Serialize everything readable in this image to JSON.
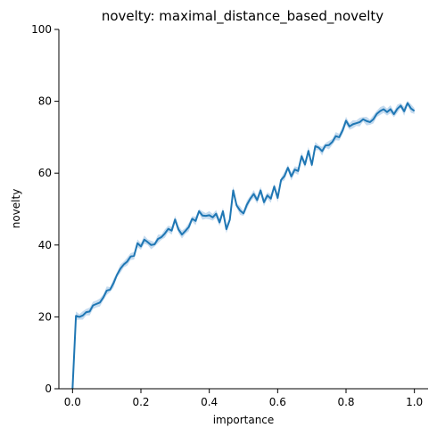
{
  "chart_data": {
    "type": "line",
    "title": "novelty: maximal_distance_based_novelty",
    "xlabel": "importance",
    "ylabel": "novelty",
    "xlim": [
      -0.04,
      1.04
    ],
    "ylim": [
      0,
      100
    ],
    "xticks": [
      0.0,
      0.2,
      0.4,
      0.6,
      0.8,
      1.0
    ],
    "xtick_labels": [
      "0.0",
      "0.2",
      "0.4",
      "0.6",
      "0.8",
      "1.0"
    ],
    "yticks": [
      0,
      20,
      40,
      60,
      80,
      100
    ],
    "ytick_labels": [
      "0",
      "20",
      "40",
      "60",
      "80",
      "100"
    ],
    "grid": false,
    "line_color": "#1f77b4",
    "band_color": "#a6c8e6",
    "series": [
      {
        "x": [
          0.0,
          0.01,
          0.02,
          0.03,
          0.04,
          0.05,
          0.06,
          0.07,
          0.08,
          0.09,
          0.1,
          0.11,
          0.12,
          0.13,
          0.14,
          0.15,
          0.16,
          0.17,
          0.18,
          0.19,
          0.2,
          0.21,
          0.22,
          0.23,
          0.24,
          0.25,
          0.26,
          0.27,
          0.28,
          0.29,
          0.3,
          0.31,
          0.32,
          0.33,
          0.34,
          0.35,
          0.36,
          0.37,
          0.38,
          0.39,
          0.4,
          0.41,
          0.42,
          0.43,
          0.44,
          0.45,
          0.46,
          0.47,
          0.48,
          0.49,
          0.5,
          0.51,
          0.52,
          0.53,
          0.54,
          0.55,
          0.56,
          0.57,
          0.58,
          0.59,
          0.6,
          0.61,
          0.62,
          0.63,
          0.64,
          0.65,
          0.66,
          0.67,
          0.68,
          0.69,
          0.7,
          0.71,
          0.72,
          0.73,
          0.74,
          0.75,
          0.76,
          0.77,
          0.78,
          0.79,
          0.8,
          0.81,
          0.82,
          0.83,
          0.84,
          0.85,
          0.86,
          0.87,
          0.88,
          0.89,
          0.9,
          0.91,
          0.92,
          0.93,
          0.94,
          0.95,
          0.96,
          0.97,
          0.98,
          0.99,
          1.0
        ],
        "y": [
          0.0,
          20.3,
          20.0,
          20.4,
          21.3,
          21.5,
          23.2,
          23.6,
          24.0,
          25.4,
          27.3,
          27.6,
          29.4,
          31.7,
          33.4,
          34.6,
          35.4,
          36.8,
          37.0,
          40.5,
          39.6,
          41.5,
          40.8,
          40.0,
          40.2,
          41.7,
          42.2,
          43.2,
          44.5,
          44.0,
          47.1,
          44.3,
          42.9,
          43.9,
          45.0,
          47.3,
          46.7,
          49.4,
          48.2,
          48.1,
          48.3,
          47.7,
          48.7,
          46.3,
          49.4,
          44.4,
          47.0,
          55.2,
          51.0,
          49.6,
          48.8,
          51.2,
          52.9,
          54.2,
          52.5,
          55.2,
          51.9,
          53.8,
          52.9,
          56.3,
          53.1,
          58.1,
          59.2,
          61.5,
          59.1,
          61.0,
          60.6,
          64.7,
          62.4,
          66.2,
          62.3,
          67.5,
          67.1,
          66.1,
          67.7,
          67.8,
          68.7,
          70.3,
          70.0,
          71.9,
          74.6,
          73.0,
          73.6,
          73.9,
          74.2,
          75.0,
          74.5,
          74.2,
          75.0,
          76.5,
          77.3,
          77.8,
          77.0,
          77.8,
          76.4,
          77.9,
          78.8,
          77.2,
          79.5,
          78.0,
          77.3
        ]
      }
    ]
  }
}
